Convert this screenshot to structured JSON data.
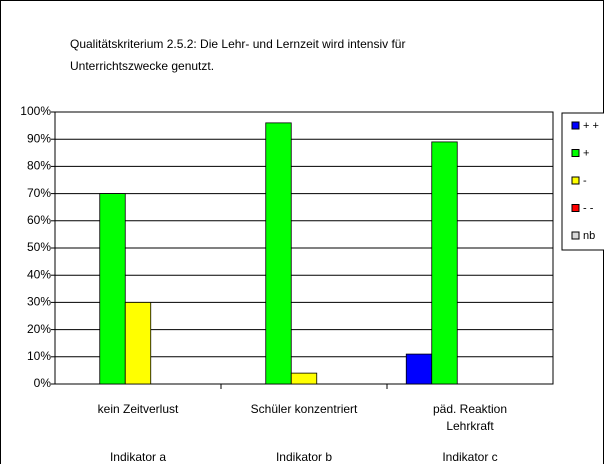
{
  "chart_data": {
    "type": "bar",
    "title": [
      "Qualitätskriterium  2.5.2: Die Lehr- und Lernzeit wird intensiv für",
      "Unterrichtszwecke genutzt."
    ],
    "categories": [
      [
        "kein Zeitverlust"
      ],
      [
        "Schüler konzentriert"
      ],
      [
        "päd. Reaktion",
        "Lehrkraft"
      ]
    ],
    "category_groups": [
      "Indikator a",
      "Indikator b",
      "Indikator c"
    ],
    "series": [
      {
        "name": "+ +",
        "color": "#0000ff",
        "values": [
          0,
          0,
          11
        ]
      },
      {
        "name": "+",
        "color": "#00ff00",
        "values": [
          70,
          96,
          89
        ]
      },
      {
        "name": "-",
        "color": "#ffff00",
        "values": [
          30,
          4,
          0
        ]
      },
      {
        "name": "- -",
        "color": "#ff0000",
        "values": [
          0,
          0,
          0
        ]
      },
      {
        "name": "nb",
        "color": "#d9d9d9",
        "values": [
          0,
          0,
          0
        ]
      }
    ],
    "ylim": [
      0,
      100
    ],
    "yticks": [
      {
        "value": 0,
        "label": "0%"
      },
      {
        "value": 10,
        "label": "10%"
      },
      {
        "value": 20,
        "label": "20%"
      },
      {
        "value": 30,
        "label": "30%"
      },
      {
        "value": 40,
        "label": "40%"
      },
      {
        "value": 50,
        "label": "50%"
      },
      {
        "value": 60,
        "label": "60%"
      },
      {
        "value": 70,
        "label": "70%"
      },
      {
        "value": 80,
        "label": "80%"
      },
      {
        "value": 90,
        "label": "90%"
      },
      {
        "value": 100,
        "label": "100%"
      }
    ],
    "grid": true,
    "legend": "right"
  }
}
